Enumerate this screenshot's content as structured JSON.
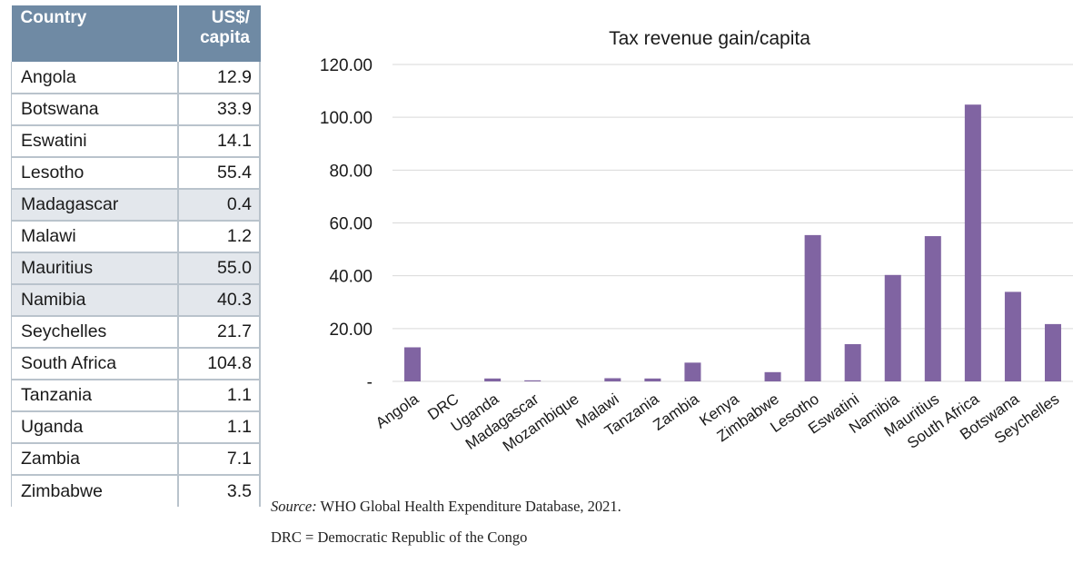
{
  "table": {
    "header_country": "Country",
    "header_value_line1": "US$/",
    "header_value_line2": "capita",
    "rows": [
      {
        "country": "Angola",
        "value": "12.9"
      },
      {
        "country": "Botswana",
        "value": "33.9"
      },
      {
        "country": "Eswatini",
        "value": "14.1"
      },
      {
        "country": "Lesotho",
        "value": "55.4"
      },
      {
        "country": "Madagascar",
        "value": "0.4"
      },
      {
        "country": "Malawi",
        "value": "1.2"
      },
      {
        "country": "Mauritius",
        "value": "55.0"
      },
      {
        "country": "Namibia",
        "value": "40.3"
      },
      {
        "country": "Seychelles",
        "value": "21.7"
      },
      {
        "country": "South Africa",
        "value": "104.8"
      },
      {
        "country": "Tanzania",
        "value": "1.1"
      },
      {
        "country": "Uganda",
        "value": "1.1"
      },
      {
        "country": "Zambia",
        "value": "7.1"
      },
      {
        "country": "Zimbabwe",
        "value": "3.5"
      }
    ],
    "shaded_rows": [
      4,
      6,
      7
    ]
  },
  "chart_data": {
    "type": "bar",
    "title": "Tax revenue gain/capita",
    "categories": [
      "Angola",
      "DRC",
      "Uganda",
      "Madagascar",
      "Mozambique",
      "Malawi",
      "Tanzania",
      "Zambia",
      "Kenya",
      "Zimbabwe",
      "Lesotho",
      "Eswatini",
      "Namibia",
      "Mauritius",
      "South Africa",
      "Botswana",
      "Seychelles"
    ],
    "values": [
      12.9,
      0,
      1.1,
      0.4,
      0,
      1.2,
      1.1,
      7.1,
      0,
      3.5,
      55.4,
      14.1,
      40.3,
      55.0,
      104.8,
      33.9,
      21.7
    ],
    "ylim": [
      0,
      120
    ],
    "yticks": [
      0,
      20,
      40,
      60,
      80,
      100,
      120
    ],
    "ytick_labels": [
      "-",
      "20.00",
      "40.00",
      "60.00",
      "80.00",
      "100.00",
      "120.00"
    ],
    "grid": true,
    "bar_color": "#8064a2",
    "grid_color": "#d9d9d9"
  },
  "source": {
    "label": "Source:",
    "text": " WHO Global Health Expenditure Database, 2021."
  },
  "note": "DRC = Democratic Republic of the Congo"
}
